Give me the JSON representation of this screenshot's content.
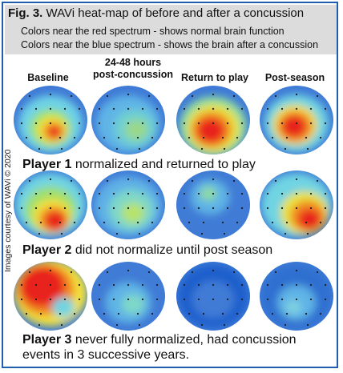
{
  "figure": {
    "label": "Fig. 3.",
    "title": "WAVi heat-map of before and after a concussion",
    "note_red": "Colors near the red spectrum - shows normal brain function",
    "note_blue": "Colors near the blue spectrum - shows the brain after a concussion"
  },
  "columns": [
    {
      "line1": "",
      "line2": "Baseline"
    },
    {
      "line1": "24-48 hours",
      "line2": "post-concussion"
    },
    {
      "line1": "",
      "line2": "Return to play"
    },
    {
      "line1": "",
      "line2": "Post-season"
    }
  ],
  "credit": "Images courtesy of WAVi © 2020",
  "players": [
    {
      "name": "Player 1",
      "text": " normalized and returned to play",
      "text2": ""
    },
    {
      "name": "Player 2",
      "text": " did not normalize until post season",
      "text2": ""
    },
    {
      "name": "Player 3",
      "text": " never fully normalized, had concussion",
      "text2": "events in 3 successive years."
    }
  ],
  "colors": {
    "frame": "#1f5fae",
    "header_bg": "#dcdcdc",
    "red": "#e8231e",
    "blue": "#1f5fcc"
  }
}
